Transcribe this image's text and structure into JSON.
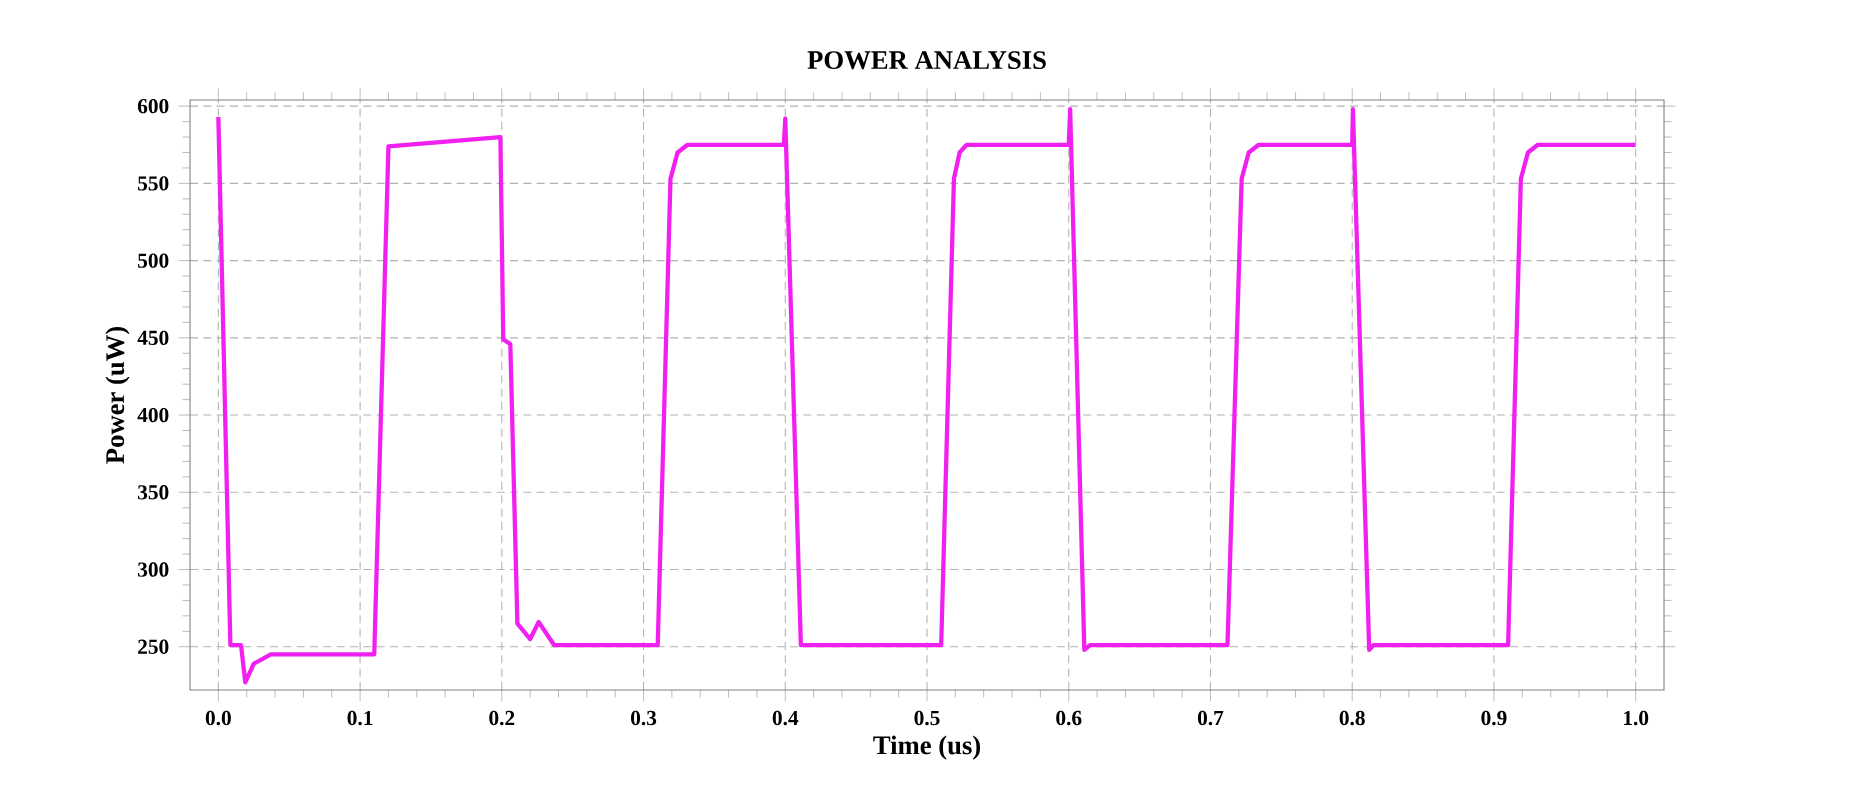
{
  "chart_data": {
    "type": "line",
    "title": "POWER ANALYSIS",
    "xlabel": "Time (us)",
    "ylabel": "Power (uW)",
    "xlim": [
      -0.02,
      1.02
    ],
    "ylim": [
      222,
      604
    ],
    "xticks": [
      {
        "value": 0,
        "label": "0.0"
      },
      {
        "value": 0.1,
        "label": "0.1"
      },
      {
        "value": 0.2,
        "label": "0.2"
      },
      {
        "value": 0.3,
        "label": "0.3"
      },
      {
        "value": 0.4,
        "label": "0.4"
      },
      {
        "value": 0.5,
        "label": "0.5"
      },
      {
        "value": 0.6,
        "label": "0.6"
      },
      {
        "value": 0.7,
        "label": "0.7"
      },
      {
        "value": 0.8,
        "label": "0.8"
      },
      {
        "value": 0.9,
        "label": "0.9"
      },
      {
        "value": 1,
        "label": "1.0"
      }
    ],
    "yticks": [
      250,
      300,
      350,
      400,
      450,
      500,
      550,
      600
    ],
    "grid": true,
    "line_style": "solid",
    "marker": "none",
    "series": [
      {
        "color": "#f020f0",
        "x": [
          0,
          0.001,
          0.0085,
          0.016,
          0.019,
          0.025,
          0.037,
          0.11,
          0.12,
          0.199,
          0.201,
          0.206,
          0.211,
          0.22,
          0.226,
          0.237,
          0.31,
          0.319,
          0.324,
          0.331,
          0.399,
          0.4,
          0.411,
          0.51,
          0.519,
          0.523,
          0.528,
          0.6,
          0.601,
          0.611,
          0.615,
          0.712,
          0.722,
          0.727,
          0.734,
          0.8,
          0.8005,
          0.812,
          0.815,
          0.91,
          0.919,
          0.924,
          0.931,
          1.0
        ],
        "values": [
          593,
          553,
          251,
          251,
          227,
          239,
          245,
          245,
          574,
          580,
          449,
          446,
          265,
          255,
          266,
          251,
          251,
          553,
          570,
          575,
          575,
          592,
          251,
          251,
          553,
          570,
          575,
          575,
          598,
          248,
          251,
          251,
          553,
          570,
          575,
          575,
          598,
          248,
          251,
          251,
          553,
          570,
          575,
          575
        ]
      }
    ]
  }
}
